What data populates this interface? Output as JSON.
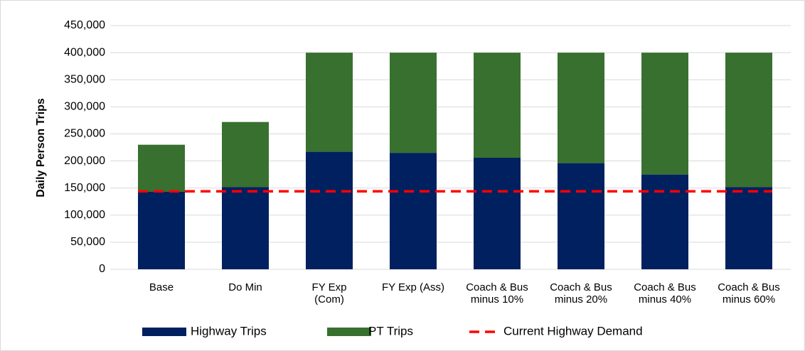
{
  "chart_data": {
    "type": "bar",
    "stacked": true,
    "ylabel": "Daily Person Trips",
    "categories": [
      "Base",
      "Do Min",
      "FY Exp\n(Com)",
      "FY Exp (Ass)",
      "Coach & Bus\nminus 10%",
      "Coach & Bus\nminus 20%",
      "Coach & Bus\nminus 40%",
      "Coach & Bus\nminus 60%"
    ],
    "series": [
      {
        "name": "Highway Trips",
        "color": "#002060",
        "values": [
          143000,
          152000,
          217000,
          215000,
          206000,
          196000,
          175000,
          152000
        ]
      },
      {
        "name": "PT Trips",
        "color": "#38702f",
        "values": [
          87000,
          120000,
          183000,
          185000,
          194000,
          204000,
          225000,
          248000
        ]
      },
      {
        "name": "Current Highway Demand",
        "type": "line",
        "dashed": true,
        "color": "#ff0000",
        "values": [
          144000,
          144000,
          144000,
          144000,
          144000,
          144000,
          144000,
          144000
        ]
      }
    ],
    "ylim": [
      0,
      450000
    ],
    "yticks": [
      0,
      {
        "value": 50000,
        "label": "50,000"
      },
      {
        "value": 100000,
        "label": "100,000"
      },
      {
        "value": 150000,
        "label": "150,000"
      },
      {
        "value": 200000,
        "label": "200,000"
      },
      {
        "value": 250000,
        "label": "250,000"
      },
      {
        "value": 300000,
        "label": "300,000"
      },
      {
        "value": 350000,
        "label": "350,000"
      },
      {
        "value": 400000,
        "label": "400,000"
      },
      {
        "value": 450000,
        "label": "450,000"
      }
    ],
    "grid": true,
    "legend": "bottom"
  }
}
